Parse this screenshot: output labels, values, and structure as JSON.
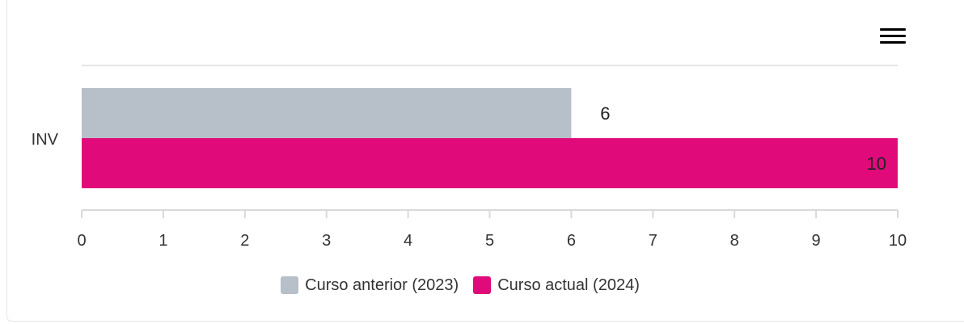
{
  "menu": {
    "icon": "hamburger-menu-icon"
  },
  "chart_data": {
    "type": "bar",
    "orientation": "horizontal",
    "categories": [
      "INV"
    ],
    "series": [
      {
        "name": "Curso anterior (2023)",
        "values": [
          6
        ],
        "color": "#b7bfc8",
        "label_color": "#222222"
      },
      {
        "name": "Curso actual (2024)",
        "values": [
          10
        ],
        "color": "#e10a7a",
        "label_color": "#222222"
      }
    ],
    "xlim": [
      0,
      10
    ],
    "xticks": [
      "0",
      "1",
      "2",
      "3",
      "4",
      "5",
      "6",
      "7",
      "8",
      "9",
      "10"
    ],
    "data_labels": [
      "6",
      "10"
    ],
    "legend_position": "bottom",
    "grid": false
  }
}
